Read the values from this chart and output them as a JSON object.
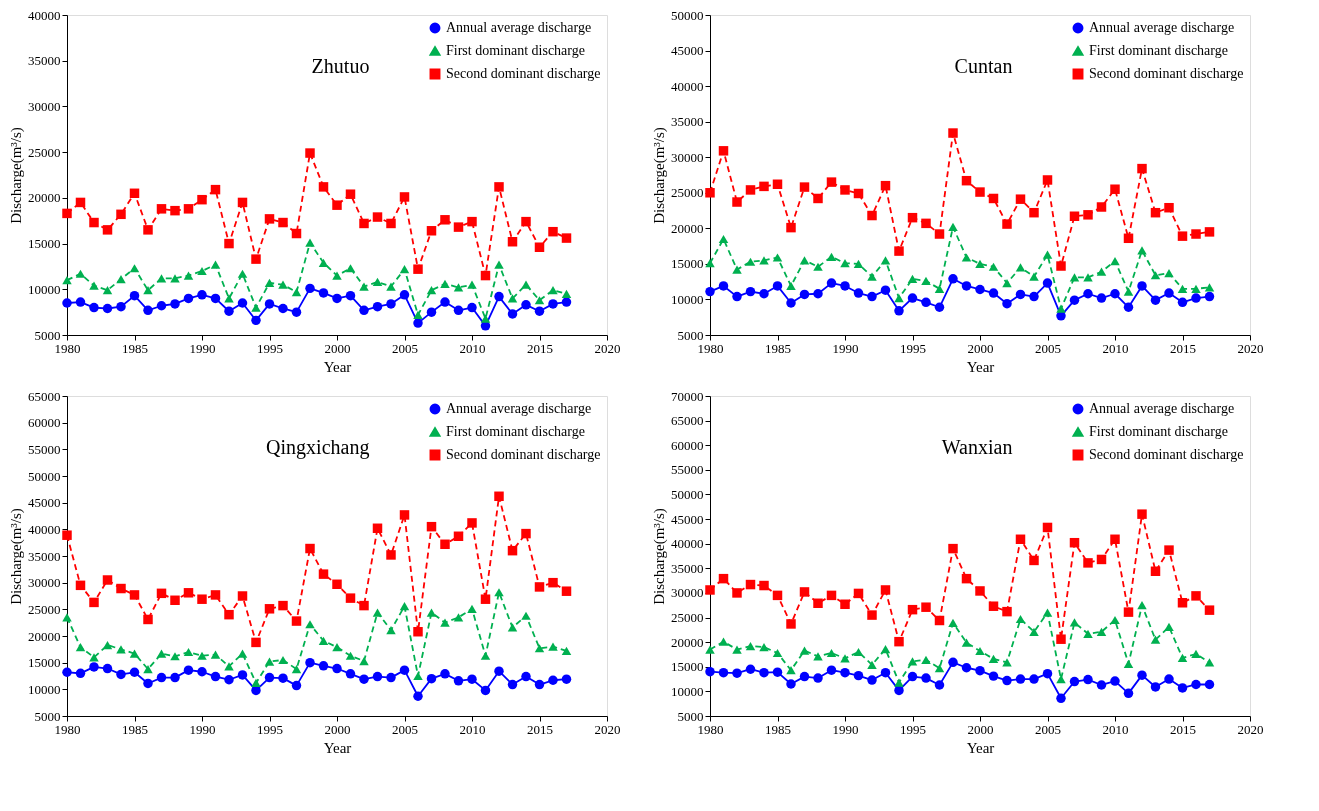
{
  "chart_data": [
    {
      "type": "line",
      "xlabel": "Year",
      "ylabel": "Discharge(m³/s)",
      "annotations": [
        "Zhutuo"
      ],
      "xlim": [
        1980,
        2020
      ],
      "xticks": [
        1980,
        1985,
        1990,
        1995,
        2000,
        2005,
        2010,
        2015,
        2020
      ],
      "ylim": [
        5000,
        40000
      ],
      "yticks": [
        5000,
        10000,
        15000,
        20000,
        25000,
        30000,
        35000,
        40000
      ],
      "grid": false,
      "legend": "top right",
      "x": [
        1980,
        1981,
        1982,
        1983,
        1984,
        1985,
        1986,
        1987,
        1988,
        1989,
        1990,
        1991,
        1992,
        1993,
        1994,
        1995,
        1996,
        1997,
        1998,
        1999,
        2000,
        2001,
        2002,
        2003,
        2004,
        2005,
        2006,
        2007,
        2008,
        2009,
        2010,
        2011,
        2012,
        2013,
        2014,
        2015,
        2016,
        2017
      ],
      "series": [
        {
          "name": "Annual average discharge",
          "color": "#0000ff",
          "marker": "circle",
          "line_style": "solid",
          "values": [
            8500,
            8600,
            8000,
            7900,
            8100,
            9300,
            7700,
            8200,
            8400,
            9000,
            9400,
            9000,
            7600,
            8500,
            6600,
            8400,
            7900,
            7500,
            10100,
            9600,
            9000,
            9300,
            7700,
            8100,
            8400,
            9400,
            6300,
            7500,
            8600,
            7700,
            8000,
            6000,
            9200,
            7300,
            8300,
            7600,
            8400,
            8600
          ]
        },
        {
          "name": "First dominant discharge",
          "color": "#00b050",
          "marker": "triangle",
          "line_style": "dashed",
          "values": [
            11000,
            11700,
            10400,
            9900,
            11100,
            12300,
            9900,
            11200,
            11200,
            11500,
            12000,
            12700,
            9000,
            11700,
            8000,
            10700,
            10500,
            9700,
            15100,
            12900,
            11500,
            12300,
            10300,
            10800,
            10300,
            12200,
            7200,
            9900,
            10600,
            10200,
            10500,
            6800,
            12700,
            9000,
            10500,
            8800,
            9900,
            9500
          ]
        },
        {
          "name": "Second dominant discharge",
          "color": "#ff0000",
          "marker": "square",
          "line_style": "dashed",
          "values": [
            18300,
            19500,
            17300,
            16500,
            18200,
            20500,
            16500,
            18800,
            18600,
            18800,
            19800,
            20900,
            15000,
            19500,
            13300,
            17700,
            17300,
            16100,
            24900,
            21200,
            19200,
            20400,
            17200,
            17900,
            17200,
            20100,
            12200,
            16400,
            17600,
            16800,
            17400,
            11500,
            21200,
            15200,
            17400,
            14600,
            16300,
            15600
          ]
        }
      ]
    },
    {
      "type": "line",
      "xlabel": "Year",
      "ylabel": "Discharge(m³/s)",
      "annotations": [
        "Cuntan"
      ],
      "xlim": [
        1980,
        2020
      ],
      "xticks": [
        1980,
        1985,
        1990,
        1995,
        2000,
        2005,
        2010,
        2015,
        2020
      ],
      "ylim": [
        5000,
        50000
      ],
      "yticks": [
        5000,
        10000,
        15000,
        20000,
        25000,
        30000,
        35000,
        40000,
        45000,
        50000
      ],
      "grid": false,
      "legend": "top right",
      "x": [
        1980,
        1981,
        1982,
        1983,
        1984,
        1985,
        1986,
        1987,
        1988,
        1989,
        1990,
        1991,
        1992,
        1993,
        1994,
        1995,
        1996,
        1997,
        1998,
        1999,
        2000,
        2001,
        2002,
        2003,
        2004,
        2005,
        2006,
        2007,
        2008,
        2009,
        2010,
        2011,
        2012,
        2013,
        2014,
        2015,
        2016,
        2017
      ],
      "series": [
        {
          "name": "Annual average discharge",
          "color": "#0000ff",
          "marker": "circle",
          "line_style": "solid",
          "values": [
            11100,
            11900,
            10400,
            11100,
            10800,
            11900,
            9500,
            10700,
            10800,
            12300,
            11900,
            10900,
            10400,
            11300,
            8400,
            10200,
            9600,
            8900,
            12900,
            11900,
            11400,
            10900,
            9400,
            10700,
            10400,
            12300,
            7700,
            9900,
            10800,
            10200,
            10800,
            8900,
            11900,
            9900,
            10900,
            9600,
            10200,
            10400
          ]
        },
        {
          "name": "First dominant discharge",
          "color": "#00b050",
          "marker": "triangle",
          "line_style": "dashed",
          "values": [
            15100,
            18500,
            14200,
            15300,
            15500,
            15900,
            11900,
            15500,
            14600,
            16000,
            15100,
            15000,
            13200,
            15500,
            10200,
            12900,
            12600,
            11500,
            20200,
            15900,
            15000,
            14600,
            12300,
            14500,
            13200,
            16300,
            8700,
            13100,
            13100,
            13900,
            15400,
            11100,
            16900,
            13400,
            13700,
            11500,
            11500,
            11700
          ]
        },
        {
          "name": "Second dominant discharge",
          "color": "#ff0000",
          "marker": "square",
          "line_style": "dashed",
          "values": [
            25000,
            30900,
            23700,
            25400,
            25900,
            26200,
            20100,
            25800,
            24200,
            26500,
            25400,
            24900,
            21800,
            26000,
            16800,
            21500,
            20700,
            19200,
            33400,
            26700,
            25100,
            24200,
            20600,
            24100,
            22200,
            26800,
            14700,
            21700,
            21900,
            23000,
            25500,
            18600,
            28400,
            22200,
            22900,
            18900,
            19200,
            19500
          ]
        }
      ]
    },
    {
      "type": "line",
      "xlabel": "Year",
      "ylabel": "Discharge(m³/s)",
      "annotations": [
        "Qingxichang"
      ],
      "xlim": [
        1980,
        2020
      ],
      "xticks": [
        1980,
        1985,
        1990,
        1995,
        2000,
        2005,
        2010,
        2015,
        2020
      ],
      "ylim": [
        5000,
        65000
      ],
      "yticks": [
        5000,
        10000,
        15000,
        20000,
        25000,
        30000,
        35000,
        40000,
        45000,
        50000,
        55000,
        60000,
        65000
      ],
      "grid": false,
      "legend": "top right",
      "x": [
        1980,
        1981,
        1982,
        1983,
        1984,
        1985,
        1986,
        1987,
        1988,
        1989,
        1990,
        1991,
        1992,
        1993,
        1994,
        1995,
        1996,
        1997,
        1998,
        1999,
        2000,
        2001,
        2002,
        2003,
        2004,
        2005,
        2006,
        2007,
        2008,
        2009,
        2010,
        2011,
        2012,
        2013,
        2014,
        2015,
        2016,
        2017
      ],
      "series": [
        {
          "name": "Annual average discharge",
          "color": "#0000ff",
          "marker": "circle",
          "line_style": "solid",
          "values": [
            13200,
            13000,
            14200,
            13900,
            12800,
            13200,
            11100,
            12200,
            12200,
            13600,
            13300,
            12400,
            11800,
            12700,
            9800,
            12200,
            12100,
            10700,
            15000,
            14400,
            13900,
            12900,
            11900,
            12400,
            12200,
            13600,
            8700,
            12000,
            12900,
            11600,
            11900,
            9800,
            13400,
            10900,
            12400,
            10900,
            11700,
            11900
          ]
        },
        {
          "name": "First dominant discharge",
          "color": "#00b050",
          "marker": "triangle",
          "line_style": "dashed",
          "values": [
            23500,
            17900,
            16000,
            18300,
            17500,
            16700,
            13800,
            16700,
            16200,
            17000,
            16300,
            16500,
            14300,
            16700,
            11200,
            15200,
            15500,
            13800,
            22200,
            19100,
            17900,
            16300,
            15300,
            24400,
            21100,
            25600,
            12500,
            24400,
            22500,
            23500,
            25100,
            16300,
            28200,
            21600,
            23800,
            17700,
            18000,
            17200
          ]
        },
        {
          "name": "Second dominant discharge",
          "color": "#ff0000",
          "marker": "square",
          "line_style": "dashed",
          "values": [
            38900,
            29500,
            26300,
            30500,
            28900,
            27700,
            23100,
            28000,
            26700,
            28100,
            26900,
            27700,
            24000,
            27500,
            18800,
            25100,
            25700,
            22800,
            36400,
            31600,
            29700,
            27100,
            25700,
            40200,
            35200,
            42700,
            20800,
            40500,
            37200,
            38700,
            41200,
            26900,
            46200,
            36000,
            39200,
            29200,
            30000,
            28400
          ]
        }
      ]
    },
    {
      "type": "line",
      "xlabel": "Year",
      "ylabel": "Discharge(m³/s)",
      "annotations": [
        "Wanxian"
      ],
      "xlim": [
        1980,
        2020
      ],
      "xticks": [
        1980,
        1985,
        1990,
        1995,
        2000,
        2005,
        2010,
        2015,
        2020
      ],
      "ylim": [
        5000,
        70000
      ],
      "yticks": [
        5000,
        10000,
        15000,
        20000,
        25000,
        30000,
        35000,
        40000,
        45000,
        50000,
        55000,
        60000,
        65000,
        70000
      ],
      "grid": false,
      "legend": "top right",
      "x": [
        1980,
        1981,
        1982,
        1983,
        1984,
        1985,
        1986,
        1987,
        1988,
        1989,
        1990,
        1991,
        1992,
        1993,
        1994,
        1995,
        1996,
        1997,
        1998,
        1999,
        2000,
        2001,
        2002,
        2003,
        2004,
        2005,
        2006,
        2007,
        2008,
        2009,
        2010,
        2011,
        2012,
        2013,
        2014,
        2015,
        2016,
        2017
      ],
      "series": [
        {
          "name": "Annual average discharge",
          "color": "#0000ff",
          "marker": "circle",
          "line_style": "solid",
          "values": [
            14000,
            13800,
            13700,
            14500,
            13800,
            13900,
            11500,
            13000,
            12700,
            14300,
            13800,
            13200,
            12300,
            13800,
            10200,
            13000,
            12700,
            11300,
            15900,
            14800,
            14200,
            13100,
            12200,
            12500,
            12500,
            13600,
            8600,
            12000,
            12400,
            11300,
            12100,
            9600,
            13300,
            10900,
            12500,
            10700,
            11400,
            11400
          ]
        },
        {
          "name": "First dominant discharge",
          "color": "#00b050",
          "marker": "triangle",
          "line_style": "dashed",
          "values": [
            18500,
            20100,
            18500,
            19200,
            19000,
            17800,
            14300,
            18300,
            17100,
            17800,
            16700,
            18000,
            15400,
            18600,
            11800,
            16100,
            16400,
            14700,
            23900,
            19900,
            18200,
            16600,
            15900,
            24700,
            22100,
            26000,
            12500,
            24000,
            21700,
            22100,
            24500,
            15600,
            27500,
            20500,
            23100,
            16800,
            17600,
            15900
          ]
        },
        {
          "name": "Second dominant discharge",
          "color": "#ff0000",
          "marker": "square",
          "line_style": "dashed",
          "values": [
            30600,
            32900,
            30000,
            31700,
            31500,
            29500,
            23700,
            30200,
            27900,
            29500,
            27700,
            29900,
            25500,
            30600,
            20100,
            26600,
            27100,
            24400,
            39000,
            32900,
            30400,
            27300,
            26200,
            40900,
            36600,
            43300,
            20600,
            40200,
            36100,
            36800,
            40900,
            26100,
            46000,
            34400,
            38700,
            28000,
            29400,
            26500
          ]
        }
      ]
    }
  ]
}
